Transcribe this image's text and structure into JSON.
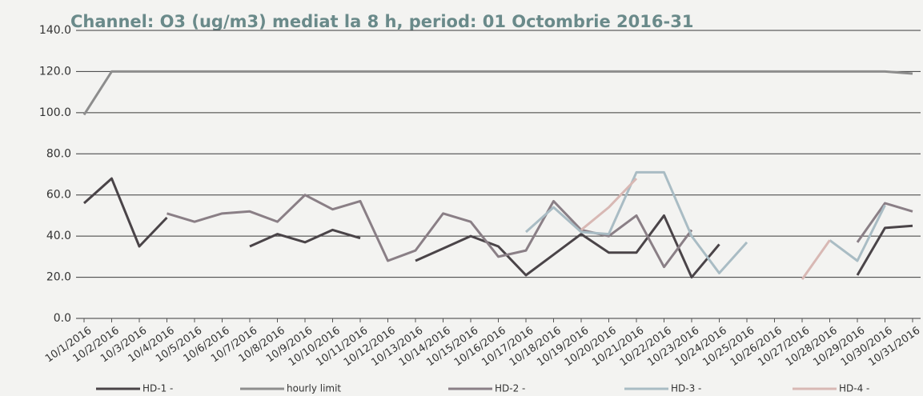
{
  "chart_data": {
    "type": "line",
    "title": "Channel: O3 (ug/m3) mediat la 8 h, period: 01 Octombrie 2016-31",
    "categories": [
      "10/1/2016",
      "10/2/2016",
      "10/3/2016",
      "10/4/2016",
      "10/5/2016",
      "10/6/2016",
      "10/7/2016",
      "10/8/2016",
      "10/9/2016",
      "10/10/2016",
      "10/11/2016",
      "10/12/2016",
      "10/13/2016",
      "10/14/2016",
      "10/15/2016",
      "10/16/2016",
      "10/17/2016",
      "10/18/2016",
      "10/19/2016",
      "10/20/2016",
      "10/21/2016",
      "10/22/2016",
      "10/23/2016",
      "10/24/2016",
      "10/25/2016",
      "10/26/2016",
      "10/27/2016",
      "10/28/2016",
      "10/29/2016",
      "10/30/2016",
      "10/31/2016"
    ],
    "series": [
      {
        "name": "HD-1 -",
        "color": "#4a4448",
        "values": [
          56,
          68,
          35,
          49,
          null,
          null,
          35,
          41,
          37,
          43,
          39,
          null,
          28,
          34,
          40,
          35,
          21,
          31,
          41,
          32,
          32,
          50,
          20,
          36,
          null,
          null,
          null,
          null,
          21,
          44,
          45
        ]
      },
      {
        "name": "hourly limit",
        "color": "#8d8d8d",
        "values": [
          99,
          120,
          120,
          120,
          120,
          120,
          120,
          120,
          120,
          120,
          120,
          120,
          120,
          120,
          120,
          120,
          120,
          120,
          120,
          120,
          120,
          120,
          120,
          120,
          120,
          120,
          120,
          120,
          120,
          120,
          119
        ]
      },
      {
        "name": "HD-2 -",
        "color": "#8a7f86",
        "values": [
          null,
          null,
          null,
          51,
          47,
          51,
          52,
          47,
          60,
          53,
          57,
          28,
          33,
          51,
          47,
          30,
          33,
          57,
          43,
          40,
          50,
          25,
          43,
          null,
          null,
          null,
          null,
          null,
          37,
          56,
          52
        ]
      },
      {
        "name": "HD-3 -",
        "color": "#a9bcc4",
        "values": [
          null,
          null,
          null,
          null,
          null,
          null,
          null,
          null,
          null,
          null,
          null,
          null,
          null,
          null,
          null,
          null,
          42,
          54,
          42,
          41,
          71,
          71,
          40,
          22,
          37,
          null,
          null,
          38,
          28,
          55,
          null
        ]
      },
      {
        "name": "HD-4 -",
        "color": "#d8b8b4",
        "values": [
          null,
          null,
          null,
          null,
          null,
          null,
          null,
          null,
          null,
          null,
          null,
          null,
          null,
          null,
          null,
          null,
          null,
          null,
          43,
          54,
          68,
          null,
          null,
          null,
          null,
          null,
          19,
          38,
          null,
          null,
          null
        ]
      }
    ],
    "ylim": [
      0,
      140
    ],
    "yticks": [
      {
        "value": 0,
        "label": "0.0"
      },
      {
        "value": 20,
        "label": "20.0"
      },
      {
        "value": 40,
        "label": "40.0"
      },
      {
        "value": 60,
        "label": "60.0"
      },
      {
        "value": 80,
        "label": "80.0"
      },
      {
        "value": 100,
        "label": "100.0"
      },
      {
        "value": 120,
        "label": "120.0"
      },
      {
        "value": 140,
        "label": "140.0"
      }
    ],
    "grid": true
  }
}
